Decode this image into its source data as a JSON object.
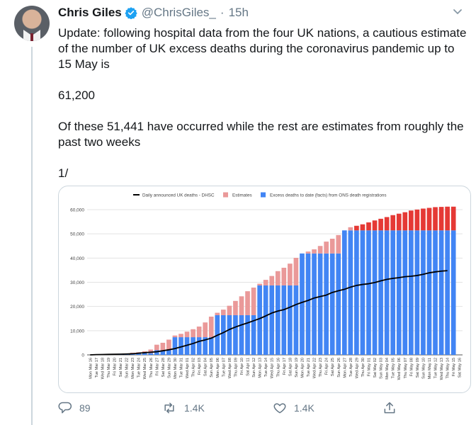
{
  "tweet": {
    "author_name": "Chris Giles",
    "handle": "@ChrisGiles_",
    "separator": "·",
    "time": "15h",
    "text": {
      "line1": "Update: following hospital data from the four UK nations, a cautious estimate of the number of UK excess deaths during the coronavirus pandemic up to 15 May is",
      "line2": "61,200",
      "line3": "Of these 51,441 have occurred  while the rest are estimates from roughly the past two weeks",
      "line4": "1/"
    }
  },
  "actions": {
    "reply_count": "89",
    "retweet_count": "1.4K",
    "like_count": "1.4K"
  },
  "icons": {
    "verified": "verified-badge-icon",
    "chevron": "chevron-down-icon",
    "reply": "reply-icon",
    "retweet": "retweet-icon",
    "like": "heart-icon",
    "share": "share-icon"
  },
  "colors": {
    "verified": "#1da1f2",
    "bar_actual": "#4285f4",
    "bar_estimate_early": "#ea9999",
    "bar_estimate_late": "#e53935",
    "line_daily": "#000000"
  },
  "chart_data": {
    "type": "bar",
    "legend_position": "top",
    "grid": true,
    "ylim": [
      0,
      60000
    ],
    "ytick_labels": [
      "0",
      "10,000",
      "20,000",
      "30,000",
      "40,000",
      "50,000",
      "60,000"
    ],
    "categories": [
      "Mon Mar 16",
      "Tue Mar 17",
      "Wed Mar 18",
      "Thu Mar 19",
      "Fri Mar 20",
      "Sat Mar 21",
      "Sun Mar 22",
      "Mon Mar 23",
      "Tue Mar 24",
      "Wed Mar 25",
      "Thu Mar 26",
      "Fri Mar 27",
      "Sat Mar 28",
      "Sun Mar 29",
      "Mon Mar 30",
      "Tue Mar 31",
      "Wed Apr 01",
      "Thu Apr 02",
      "Fri Apr 03",
      "Sat Apr 04",
      "Sun Apr 05",
      "Mon Apr 06",
      "Tue Apr 07",
      "Wed Apr 08",
      "Thu Apr 09",
      "Fri Apr 10",
      "Sat Apr 11",
      "Sun Apr 12",
      "Mon Apr 13",
      "Tue Apr 14",
      "Wed Apr 15",
      "Thu Apr 16",
      "Fri Apr 17",
      "Sat Apr 18",
      "Sun Apr 19",
      "Mon Apr 20",
      "Tue Apr 21",
      "Wed Apr 22",
      "Thu Apr 23",
      "Fri Apr 24",
      "Sat Apr 25",
      "Sun Apr 26",
      "Mon Apr 27",
      "Tue Apr 28",
      "Wed Apr 29",
      "Thu Apr 30",
      "Fri May 01",
      "Sat May 02",
      "Sun May 03",
      "Mon May 04",
      "Tue May 05",
      "Wed May 06",
      "Thu May 07",
      "Fri May 08",
      "Sat May 09",
      "Sun May 10",
      "Mon May 11",
      "Tue May 12",
      "Wed May 13",
      "Thu May 14",
      "Fri May 15",
      "Sat May 16"
    ],
    "series": [
      {
        "name": "Excess deaths to date (facts) from ONS death registrations",
        "kind": "bar",
        "values": [
          0,
          0,
          0,
          0,
          0,
          200,
          400,
          700,
          700,
          700,
          700,
          1900,
          1900,
          1900,
          7300,
          7300,
          7300,
          7300,
          7300,
          7300,
          7300,
          16400,
          16400,
          16400,
          16400,
          16400,
          16400,
          16400,
          28700,
          28700,
          28700,
          28700,
          28700,
          28700,
          28700,
          41900,
          41900,
          41900,
          41900,
          41900,
          41900,
          41900,
          51441,
          51441,
          51441,
          51441,
          51441,
          51441,
          51441,
          51441,
          51441,
          51441,
          51441,
          51441,
          51441,
          51441,
          51441,
          51441,
          51441,
          51441,
          51441,
          null
        ]
      },
      {
        "name": "Estimates",
        "kind": "bar-stacked",
        "values": [
          0,
          0,
          0,
          0,
          0,
          0,
          100,
          200,
          400,
          800,
          1500,
          2300,
          3100,
          4400,
          700,
          1400,
          2300,
          3300,
          4400,
          6100,
          8500,
          1000,
          2300,
          3900,
          5900,
          7800,
          9900,
          11400,
          700,
          2300,
          3900,
          5900,
          7300,
          9000,
          11400,
          0,
          800,
          1700,
          3100,
          4900,
          6100,
          7600,
          0,
          1300,
          1900,
          2500,
          3300,
          4100,
          4800,
          5500,
          6300,
          6900,
          7500,
          8200,
          8600,
          9000,
          9300,
          9600,
          9700,
          9800,
          9800,
          null
        ]
      },
      {
        "name": "Daily announced UK deaths - DHSC",
        "kind": "line",
        "values": [
          0,
          100,
          150,
          200,
          250,
          300,
          350,
          450,
          700,
          900,
          1100,
          1300,
          1700,
          2100,
          2600,
          3300,
          4000,
          4700,
          5600,
          6200,
          6900,
          8100,
          9200,
          10500,
          11500,
          12400,
          13200,
          14100,
          15000,
          16100,
          17300,
          18100,
          18700,
          19700,
          20800,
          21700,
          22500,
          23500,
          24100,
          24700,
          25800,
          26500,
          27100,
          28000,
          28700,
          29100,
          29400,
          29900,
          30600,
          31200,
          31600,
          31900,
          32300,
          32500,
          32800,
          33300,
          33900,
          34300,
          34600,
          34800,
          null,
          null
        ]
      }
    ]
  }
}
